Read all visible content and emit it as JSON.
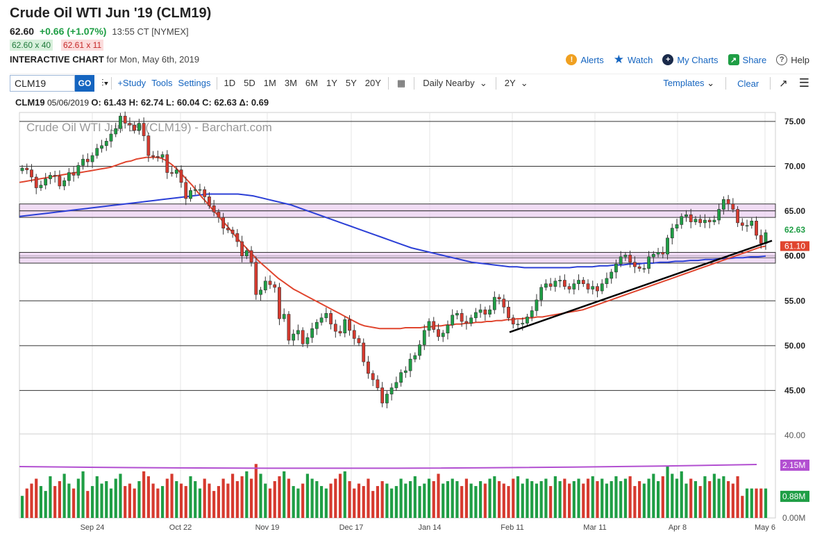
{
  "header": {
    "title": "Crude Oil WTI Jun '19 (CLM19)",
    "last": "62.60",
    "change": "+0.66 (+1.07%)",
    "time": "13:55 CT [NYMEX]",
    "bid": "62.60 x 40",
    "ask": "62.61 x 11",
    "interactive_label": "INTERACTIVE CHART",
    "interactive_date": "for Mon, May 6th, 2019"
  },
  "topnav": {
    "alerts": "Alerts",
    "watch": "Watch",
    "mycharts": "My Charts",
    "share": "Share",
    "help": "Help"
  },
  "toolbar": {
    "symbol": "CLM19",
    "go": "GO",
    "study": "+Study",
    "tools": "Tools",
    "settings": "Settings",
    "timeframes": [
      "1D",
      "5D",
      "1M",
      "3M",
      "6M",
      "1Y",
      "5Y",
      "20Y"
    ],
    "aggregation": "Daily Nearby",
    "period": "2Y",
    "templates": "Templates",
    "clear": "Clear"
  },
  "ohlc": {
    "symbol": "CLM19",
    "date": "05/06/2019",
    "text": "O: 61.43 H: 62.74 L: 60.04 C: 62.63 Δ: 0.69"
  },
  "colors": {
    "up": "#1f9e45",
    "down": "#d63a2f",
    "ma_fast": "#e0452e",
    "ma_slow": "#2b3fd6",
    "zone": "#e9cdf0",
    "volume_ma": "#b24fd1",
    "link": "#1565c0"
  },
  "chart_data": {
    "type": "candlestick",
    "title": "Crude Oil WTI Jun '19 (CLM19) - Barchart.com",
    "y_axis": {
      "min": 40,
      "max": 76,
      "ticks": [
        "75.00",
        "70.00",
        "65.00",
        "60.00",
        "55.00",
        "50.00",
        "45.00",
        "40.00"
      ]
    },
    "x_ticks": [
      "Sep 24",
      "Oct 22",
      "Nov 19",
      "Dec 17",
      "Jan 14",
      "Feb 11",
      "Mar 11",
      "Apr 8",
      "May 6"
    ],
    "price_labels": {
      "last": "62.63",
      "ma_fast": "61.10",
      "ma_slow": "60.00"
    },
    "resistance_zones": [
      [
        64.3,
        65.8
      ],
      [
        59.2,
        60.4
      ]
    ],
    "trendline": {
      "start": [
        "Feb 11",
        51.5
      ],
      "end": [
        "May 6",
        61.7
      ]
    },
    "closes": [
      69.8,
      69.6,
      68.8,
      67.6,
      67.9,
      68.6,
      69.0,
      68.9,
      67.8,
      68.4,
      69.3,
      69.0,
      70.1,
      70.8,
      70.5,
      71.2,
      72.0,
      72.3,
      72.8,
      73.6,
      74.2,
      75.6,
      74.8,
      74.6,
      74.0,
      74.8,
      73.4,
      71.2,
      71.1,
      71.0,
      71.3,
      69.3,
      69.2,
      69.6,
      68.2,
      66.4,
      67.3,
      67.4,
      67.4,
      66.6,
      65.6,
      64.9,
      64.3,
      63.1,
      62.9,
      62.5,
      61.6,
      60.0,
      60.6,
      59.3,
      55.7,
      56.2,
      57.2,
      56.8,
      56.5,
      53.0,
      53.5,
      50.6,
      51.3,
      51.7,
      50.2,
      50.9,
      51.9,
      52.6,
      53.1,
      53.6,
      52.4,
      51.6,
      51.4,
      52.9,
      51.7,
      50.8,
      50.3,
      48.2,
      46.9,
      46.2,
      45.3,
      43.6,
      44.6,
      45.3,
      45.9,
      47.0,
      47.2,
      48.5,
      48.9,
      50.1,
      51.7,
      52.7,
      51.8,
      51.0,
      51.4,
      52.3,
      53.4,
      53.6,
      52.7,
      52.5,
      53.1,
      53.7,
      54.0,
      53.5,
      54.0,
      55.4,
      55.2,
      54.3,
      53.1,
      52.4,
      52.4,
      52.5,
      53.2,
      53.9,
      55.1,
      56.5,
      56.9,
      56.6,
      57.2,
      57.3,
      56.6,
      56.3,
      56.9,
      57.3,
      56.9,
      56.3,
      56.6,
      56.1,
      56.9,
      57.5,
      58.2,
      59.1,
      59.9,
      60.1,
      59.3,
      58.8,
      58.6,
      58.6,
      59.9,
      60.2,
      60.4,
      60.2,
      62.0,
      63.1,
      63.5,
      64.4,
      64.6,
      63.8,
      64.1,
      63.7,
      64.0,
      63.8,
      64.0,
      65.2,
      66.3,
      65.8,
      65.2,
      63.7,
      63.4,
      63.4,
      63.9,
      62.3,
      61.4,
      62.6
    ],
    "ma_fast": [
      68.2,
      68.3,
      68.4,
      68.5,
      68.6,
      68.7,
      68.8,
      68.9,
      69.0,
      69.1,
      69.2,
      69.3,
      69.3,
      69.4,
      69.5,
      69.6,
      69.7,
      69.8,
      69.9,
      70.1,
      70.3,
      70.5,
      70.6,
      70.8,
      70.9,
      71.0,
      71.0,
      71.0,
      70.9,
      70.6,
      70.2,
      69.7,
      69.1,
      68.5,
      67.9,
      67.2,
      66.5,
      65.9,
      65.2,
      64.6,
      63.9,
      63.3,
      62.6,
      61.9,
      61.3,
      60.7,
      60.1,
      59.5,
      59.0,
      58.5,
      58.0,
      57.5,
      57.1,
      56.7,
      56.3,
      56.0,
      55.7,
      55.4,
      55.1,
      54.8,
      54.5,
      54.2,
      53.9,
      53.6,
      53.3,
      53.0,
      52.7,
      52.4,
      52.2,
      52.1,
      52.0,
      51.9,
      51.9,
      51.9,
      51.9,
      51.9,
      52.0,
      52.0,
      52.0,
      52.0,
      52.1,
      52.1,
      52.2,
      52.2,
      52.3,
      52.3,
      52.4,
      52.4,
      52.5,
      52.5,
      52.6,
      52.6,
      52.7,
      52.7,
      52.8,
      52.8,
      52.9,
      52.9,
      53.0,
      53.0,
      53.1,
      53.1,
      53.2,
      53.2,
      53.3,
      53.4,
      53.5,
      53.6,
      53.7,
      53.8,
      53.9,
      54.0,
      54.2,
      54.4,
      54.6,
      54.8,
      55.0,
      55.2,
      55.4,
      55.6,
      55.8,
      56.0,
      56.2,
      56.4,
      56.6,
      56.8,
      57.0,
      57.2,
      57.4,
      57.6,
      57.8,
      58.0,
      58.2,
      58.4,
      58.6,
      58.8,
      59.0,
      59.2,
      59.4,
      59.6,
      59.8,
      60.0,
      60.2,
      60.4,
      60.6,
      60.8,
      61.0,
      61.1
    ],
    "ma_slow": [
      64.4,
      64.5,
      64.6,
      64.7,
      64.8,
      64.9,
      65.0,
      65.1,
      65.2,
      65.3,
      65.4,
      65.5,
      65.6,
      65.7,
      65.8,
      65.9,
      66.0,
      66.1,
      66.2,
      66.3,
      66.4,
      66.5,
      66.6,
      66.7,
      66.8,
      66.9,
      66.9,
      66.9,
      66.9,
      66.9,
      66.8,
      66.7,
      66.5,
      66.3,
      66.1,
      65.9,
      65.7,
      65.4,
      65.1,
      64.8,
      64.5,
      64.2,
      63.9,
      63.6,
      63.3,
      63.0,
      62.7,
      62.4,
      62.1,
      61.8,
      61.5,
      61.2,
      60.9,
      60.7,
      60.5,
      60.3,
      60.1,
      59.9,
      59.7,
      59.5,
      59.3,
      59.2,
      59.1,
      59.0,
      58.9,
      58.8,
      58.8,
      58.7,
      58.7,
      58.7,
      58.7,
      58.7,
      58.7,
      58.7,
      58.8,
      58.8,
      58.8,
      58.9,
      58.9,
      59.0,
      59.0,
      59.1,
      59.1,
      59.2,
      59.2,
      59.3,
      59.3,
      59.4,
      59.4,
      59.5,
      59.5,
      59.6,
      59.6,
      59.7,
      59.7,
      59.8,
      59.8,
      59.9,
      59.9,
      60.0
    ],
    "volume": {
      "ticks": [
        "2.15M",
        "0.88M",
        "0.00M"
      ],
      "ma_label": "2.15M",
      "last_label": "0.88M",
      "max": 3.0,
      "ma_value": 2.15,
      "values": [
        0.9,
        1.2,
        1.4,
        1.6,
        1.3,
        1.1,
        1.7,
        1.3,
        1.5,
        1.8,
        1.4,
        1.2,
        1.6,
        1.9,
        1.1,
        1.3,
        1.7,
        1.4,
        1.5,
        1.2,
        1.6,
        1.8,
        1.3,
        1.4,
        1.2,
        1.5,
        1.9,
        1.7,
        1.4,
        1.2,
        1.3,
        1.6,
        1.8,
        1.5,
        1.4,
        1.3,
        1.7,
        1.5,
        1.2,
        1.6,
        1.4,
        1.1,
        1.3,
        1.6,
        1.4,
        1.8,
        1.5,
        1.7,
        1.9,
        1.6,
        2.2,
        1.8,
        1.4,
        1.2,
        1.5,
        1.7,
        1.9,
        1.6,
        1.3,
        1.2,
        1.4,
        1.8,
        1.6,
        1.5,
        1.3,
        1.2,
        1.4,
        1.6,
        1.8,
        1.9,
        1.5,
        1.2,
        1.4,
        1.3,
        1.6,
        1.1,
        1.3,
        1.5,
        1.4,
        1.2,
        1.3,
        1.6,
        1.4,
        1.5,
        1.7,
        1.3,
        1.4,
        1.6,
        1.5,
        1.8,
        1.4,
        1.5,
        1.6,
        1.5,
        1.3,
        1.6,
        1.4,
        1.3,
        1.5,
        1.4,
        1.6,
        1.7,
        1.5,
        1.4,
        1.3,
        1.6,
        1.7,
        1.4,
        1.6,
        1.5,
        1.4,
        1.5,
        1.6,
        1.3,
        1.7,
        1.5,
        1.6,
        1.4,
        1.5,
        1.6,
        1.4,
        1.6,
        1.7,
        1.5,
        1.6,
        1.4,
        1.5,
        1.7,
        1.5,
        1.6,
        1.7,
        1.3,
        1.5,
        1.4,
        1.6,
        1.8,
        1.5,
        1.7,
        2.1,
        1.8,
        1.6,
        1.9,
        1.4,
        1.6,
        1.5,
        1.3,
        1.7,
        1.5,
        1.8,
        1.6,
        1.7,
        1.5,
        1.4,
        1.7,
        0.9
      ]
    }
  }
}
